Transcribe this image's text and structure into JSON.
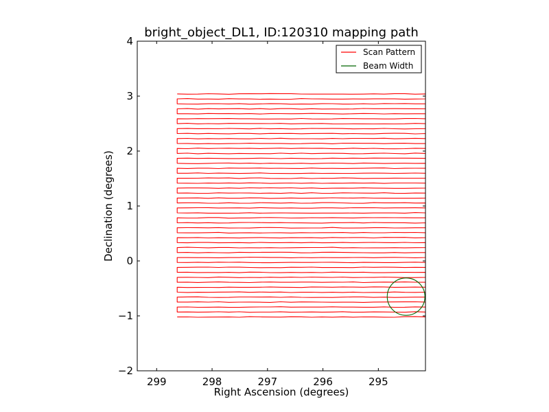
{
  "chart_data": {
    "type": "line",
    "title": "bright_object_DL1, ID:120310 mapping path",
    "xlabel": "Right Ascension (degrees)",
    "ylabel": "Declination (degrees)",
    "xlim": [
      299.35,
      294.15
    ],
    "ylim": [
      -2,
      4
    ],
    "x_ticks": [
      299,
      298,
      297,
      296,
      295
    ],
    "y_ticks": [
      -2,
      -1,
      0,
      1,
      2,
      3,
      4
    ],
    "x_tick_labels": [
      "299",
      "298",
      "297",
      "296",
      "295"
    ],
    "y_tick_labels": [
      "−2",
      "−1",
      "0",
      "1",
      "2",
      "3",
      "4"
    ],
    "legend_position": "top-right",
    "series": [
      {
        "name": "Scan Pattern",
        "color": "#ff0000",
        "kind": "raster-scan",
        "ra_start": 298.63,
        "ra_end": 294.15,
        "dec_start": -1.02,
        "dec_end": 3.04,
        "rows": 46
      },
      {
        "name": "Beam Width",
        "color": "#006400",
        "kind": "circle",
        "center_ra": 294.5,
        "center_dec": -0.65,
        "radius_deg": 0.34
      }
    ]
  }
}
